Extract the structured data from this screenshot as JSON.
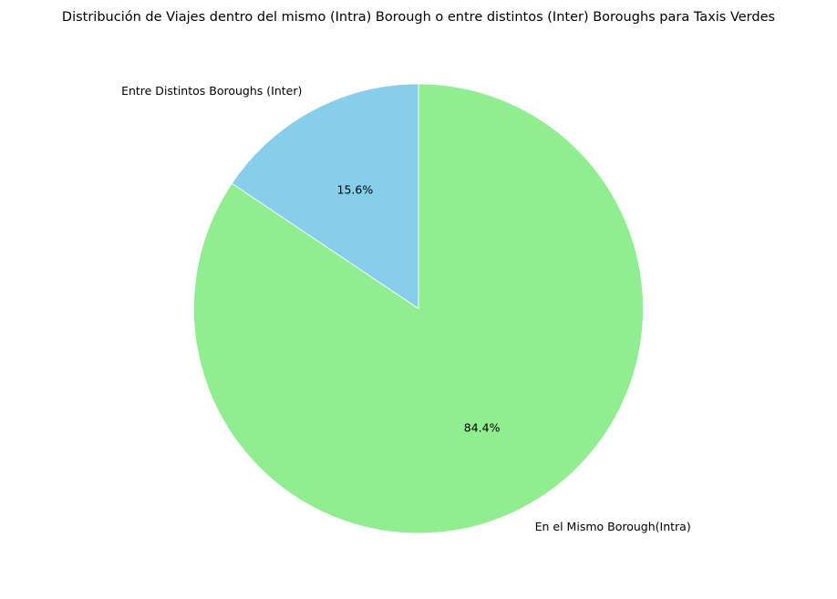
{
  "chart_data": {
    "type": "pie",
    "title": "Distribución de Viajes dentro del mismo (Intra) Borough o entre distintos (Inter) Boroughs para Taxis Verdes",
    "labels": [
      "Entre Distintos Boroughs (Inter)",
      "En el Mismo Borough(Intra)"
    ],
    "values": [
      15.6,
      84.4
    ],
    "percent_labels": [
      "15.6%",
      "84.4%"
    ],
    "colors": [
      "#87ceeb",
      "#90ee90"
    ],
    "start_angle_deg": 90,
    "direction": "counterclockwise",
    "edge_color": "#ffffff",
    "legend": "none"
  }
}
